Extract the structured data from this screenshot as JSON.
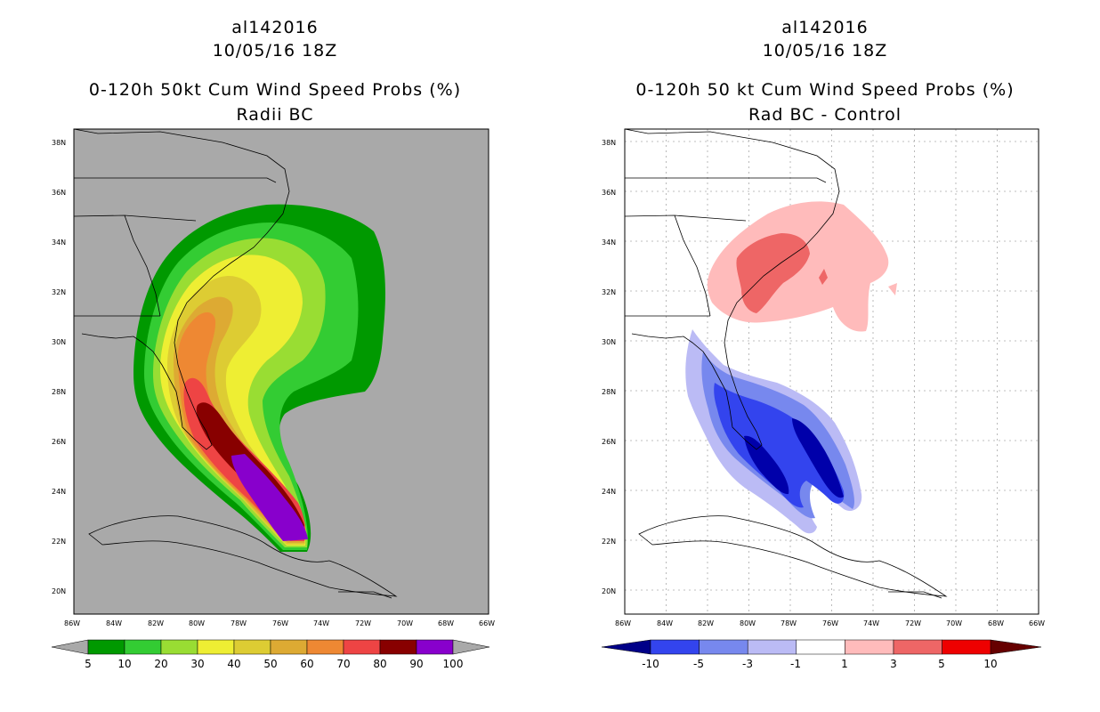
{
  "left": {
    "title_storm": "al142016",
    "title_time": "10/05/16 18Z",
    "title_product": "0-120h 50kt Cum Wind Speed Probs (%)",
    "title_variant": "Radii BC",
    "lat_labels": [
      "38N",
      "36N",
      "34N",
      "32N",
      "30N",
      "28N",
      "26N",
      "24N",
      "22N",
      "20N"
    ],
    "lon_labels": [
      "86W",
      "84W",
      "82W",
      "80W",
      "78W",
      "76W",
      "74W",
      "72W",
      "70W",
      "68W",
      "66W"
    ],
    "colorbar": {
      "colors": [
        "#009900",
        "#33cc33",
        "#99dd33",
        "#eeee33",
        "#ddcc33",
        "#ddaa33",
        "#ee8833",
        "#ee4444",
        "#880000",
        "#8800cc"
      ],
      "labels": [
        "5",
        "10",
        "20",
        "30",
        "40",
        "50",
        "60",
        "70",
        "80",
        "90",
        "100"
      ]
    }
  },
  "right": {
    "title_storm": "al142016",
    "title_time": "10/05/16 18Z",
    "title_product": "0-120h 50 kt Cum Wind Speed Probs (%)",
    "title_variant": "Rad BC - Control",
    "lat_labels": [
      "38N",
      "36N",
      "34N",
      "32N",
      "30N",
      "28N",
      "26N",
      "24N",
      "22N",
      "20N"
    ],
    "lon_labels": [
      "86W",
      "84W",
      "82W",
      "80W",
      "78W",
      "76W",
      "74W",
      "72W",
      "70W",
      "68W",
      "66W"
    ],
    "colorbar": {
      "colors": [
        "#0000cc",
        "#3344ee",
        "#7788ee",
        "#bbbbf5",
        "#ffffff",
        "#ffbbbb",
        "#ee6666",
        "#ee0000",
        "#880000"
      ],
      "labels": [
        "-10",
        "-5",
        "-3",
        "-1",
        "1",
        "3",
        "5",
        "10"
      ]
    }
  }
}
